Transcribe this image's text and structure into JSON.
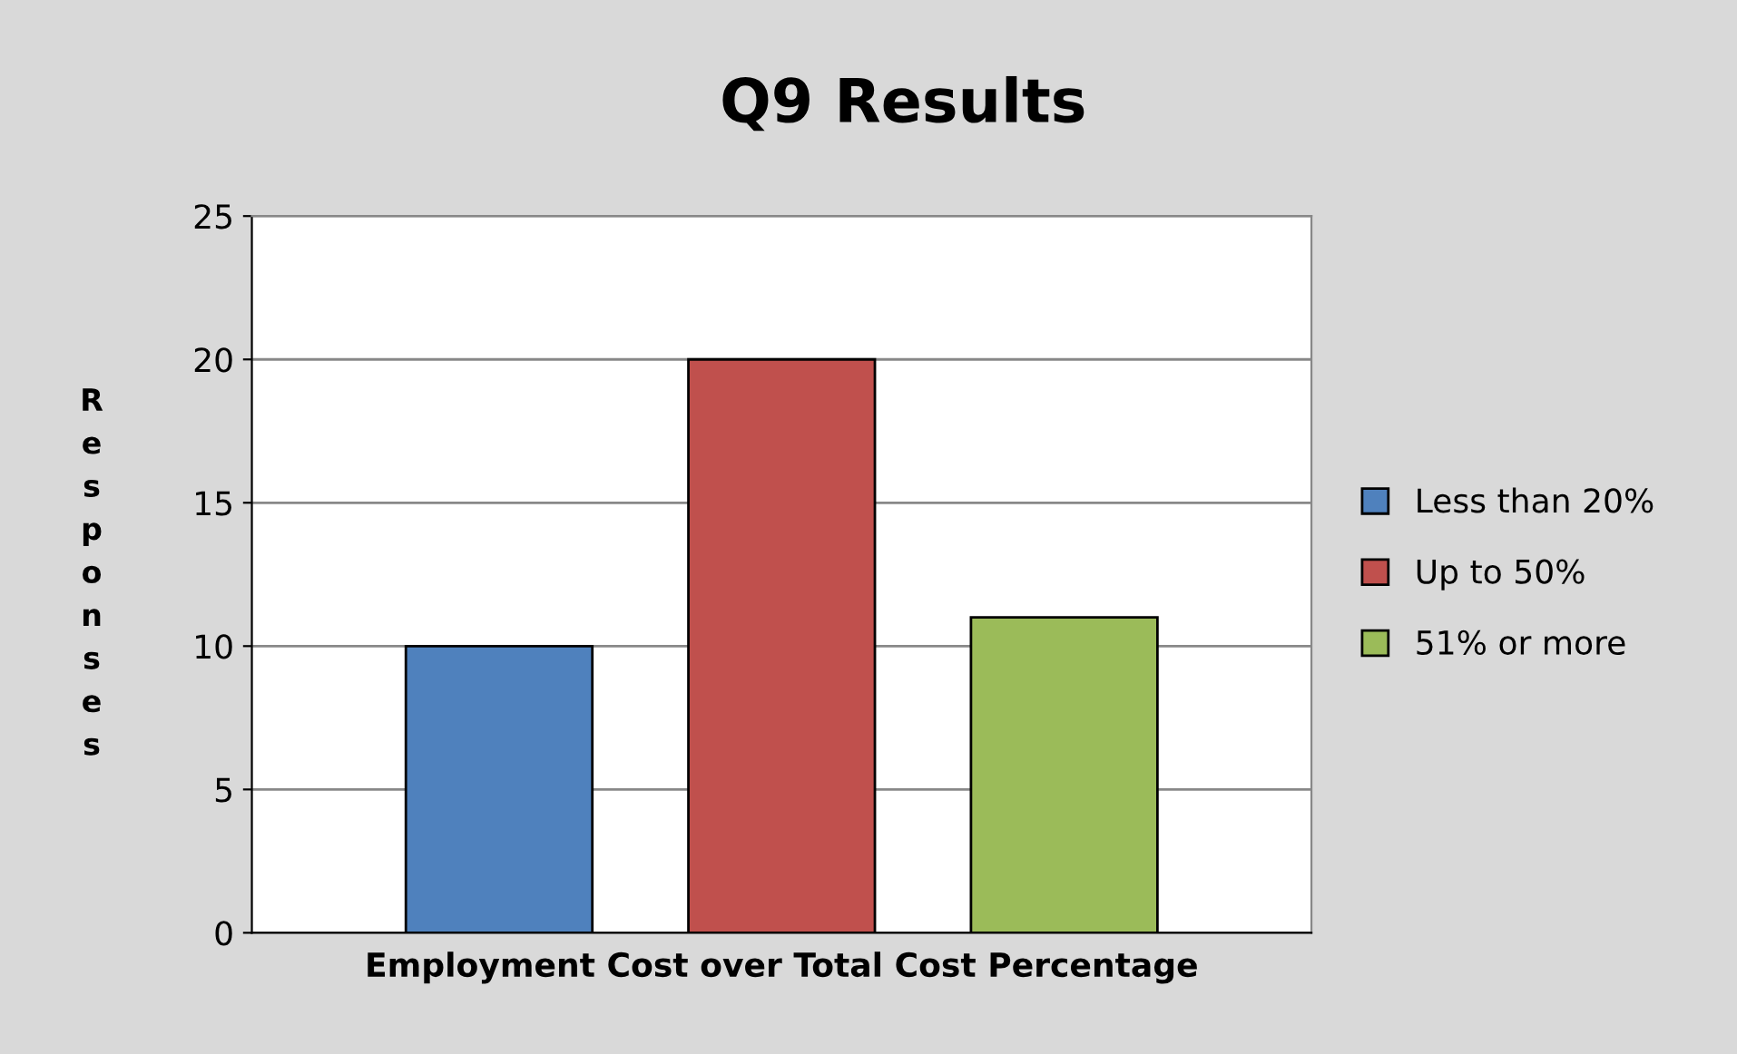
{
  "chart_data": {
    "type": "bar",
    "title": "Q9 Results",
    "xlabel": "Employment Cost over Total Cost Percentage",
    "ylabel": "Responses",
    "categories": [
      null
    ],
    "series": [
      {
        "name": "Less than 20%",
        "color": "#4f81bd",
        "values": [
          10
        ]
      },
      {
        "name": "Up to 50%",
        "color": "#c0504d",
        "values": [
          20
        ]
      },
      {
        "name": "51% or more",
        "color": "#9bbb59",
        "values": [
          11
        ]
      }
    ],
    "ylim": [
      0,
      25
    ],
    "yticks": [
      0,
      5,
      10,
      15,
      20,
      25
    ],
    "grid": "y",
    "legend": "right"
  }
}
